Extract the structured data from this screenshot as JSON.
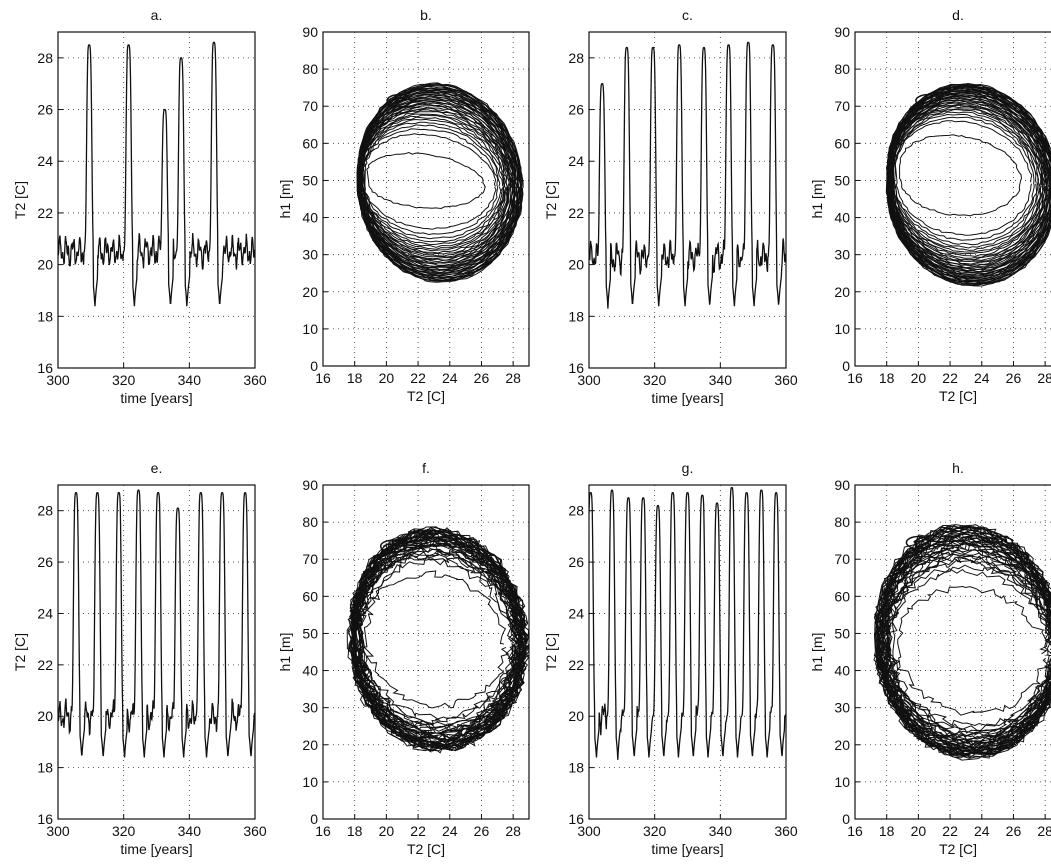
{
  "chart_data": [
    {
      "id": "a",
      "type": "line",
      "title": "a.",
      "xlabel": "time [years]",
      "ylabel": "T2 [C]",
      "xlim": [
        300,
        360
      ],
      "ylim": [
        16,
        29
      ],
      "xticks": [
        300,
        320,
        340,
        360
      ],
      "yticks": [
        16,
        18,
        20,
        22,
        24,
        26,
        28
      ],
      "grid": "dotted",
      "series": [
        {
          "color": "#111111",
          "peaks": [
            [
              309.5,
              28.5
            ],
            [
              321.5,
              28.5
            ],
            [
              332.5,
              26.0
            ],
            [
              337.5,
              28.0
            ],
            [
              347.5,
              28.6
            ]
          ],
          "baseline": 20.5
        }
      ]
    },
    {
      "id": "b",
      "type": "line",
      "title": "b.",
      "xlabel": "T2 [C]",
      "ylabel": "h1 [m]",
      "xlim": [
        16,
        29
      ],
      "ylim": [
        0,
        90
      ],
      "xticks": [
        16,
        18,
        20,
        22,
        24,
        26,
        28
      ],
      "yticks": [
        0,
        10,
        20,
        30,
        40,
        50,
        60,
        70,
        80,
        90
      ],
      "grid": "dotted",
      "series": [
        {
          "color": "#111111",
          "outer_loop": {
            "t2_min": 18.2,
            "t2_max": 28.6,
            "h1_min": 22,
            "h1_max": 74
          },
          "inner_loop": {
            "t2_min": 18.8,
            "t2_max": 26.2,
            "h1_min": 42,
            "h1_max": 55
          }
        }
      ]
    },
    {
      "id": "c",
      "type": "line",
      "title": "c.",
      "xlabel": "time [years]",
      "ylabel": "T2 [C]",
      "xlim": [
        300,
        360
      ],
      "ylim": [
        16,
        29
      ],
      "xticks": [
        300,
        320,
        340,
        360
      ],
      "yticks": [
        16,
        18,
        20,
        22,
        24,
        26,
        28
      ],
      "grid": "dotted",
      "series": [
        {
          "color": "#111111",
          "peaks": [
            [
              304.0,
              27.0
            ],
            [
              311.5,
              28.4
            ],
            [
              319.5,
              28.4
            ],
            [
              327.5,
              28.5
            ],
            [
              335.0,
              28.4
            ],
            [
              342.5,
              28.5
            ],
            [
              348.5,
              28.6
            ],
            [
              356.0,
              28.5
            ]
          ],
          "baseline": 20.3
        }
      ]
    },
    {
      "id": "d",
      "type": "line",
      "title": "d.",
      "xlabel": "T2 [C]",
      "ylabel": "h1 [m]",
      "xlim": [
        16,
        29
      ],
      "ylim": [
        0,
        90
      ],
      "xticks": [
        16,
        18,
        20,
        22,
        24,
        26,
        28
      ],
      "yticks": [
        0,
        10,
        20,
        30,
        40,
        50,
        60,
        70,
        80,
        90
      ],
      "grid": "dotted",
      "series": [
        {
          "color": "#111111",
          "outer_loop": {
            "t2_min": 18.0,
            "t2_max": 28.8,
            "h1_min": 21,
            "h1_max": 74
          },
          "inner_loop": {
            "t2_min": 18.8,
            "t2_max": 26.5,
            "h1_min": 40,
            "h1_max": 60
          }
        }
      ]
    },
    {
      "id": "e",
      "type": "line",
      "title": "e.",
      "xlabel": "time [years]",
      "ylabel": "T2 [C]",
      "xlim": [
        300,
        360
      ],
      "ylim": [
        16,
        29
      ],
      "xticks": [
        300,
        320,
        340,
        360
      ],
      "yticks": [
        16,
        18,
        20,
        22,
        24,
        26,
        28
      ],
      "grid": "dotted",
      "series": [
        {
          "color": "#111111",
          "peaks": [
            [
              305.5,
              28.7
            ],
            [
              312.0,
              28.7
            ],
            [
              318.5,
              28.7
            ],
            [
              324.5,
              28.8
            ],
            [
              330.5,
              28.7
            ],
            [
              336.5,
              28.1
            ],
            [
              343.5,
              28.7
            ],
            [
              350.0,
              28.7
            ],
            [
              357.0,
              28.7
            ]
          ],
          "baseline": 20.0
        }
      ]
    },
    {
      "id": "f",
      "type": "line",
      "title": "f.",
      "xlabel": "T2 [C]",
      "ylabel": "h1 [m]",
      "xlim": [
        16,
        29
      ],
      "ylim": [
        0,
        90
      ],
      "xticks": [
        16,
        18,
        20,
        22,
        24,
        26,
        28
      ],
      "yticks": [
        0,
        10,
        20,
        30,
        40,
        50,
        60,
        70,
        80,
        90
      ],
      "grid": "dotted",
      "series": [
        {
          "color": "#111111",
          "outer_loop": {
            "t2_min": 17.8,
            "t2_max": 28.8,
            "h1_min": 18,
            "h1_max": 76
          },
          "inner_loop": {
            "t2_min": 18.8,
            "t2_max": 27.5,
            "h1_min": 30,
            "h1_max": 64
          }
        }
      ]
    },
    {
      "id": "g",
      "type": "line",
      "title": "g.",
      "xlabel": "time [years]",
      "ylabel": "T2 [C]",
      "xlim": [
        300,
        360
      ],
      "ylim": [
        16,
        29
      ],
      "xticks": [
        300,
        320,
        340,
        360
      ],
      "yticks": [
        16,
        18,
        20,
        22,
        24,
        26,
        28
      ],
      "grid": "dotted",
      "series": [
        {
          "color": "#111111",
          "peaks": [
            [
              300.5,
              28.7
            ],
            [
              307.0,
              28.8
            ],
            [
              312.0,
              28.5
            ],
            [
              316.5,
              28.5
            ],
            [
              321.0,
              28.2
            ],
            [
              325.5,
              28.7
            ],
            [
              330.0,
              28.7
            ],
            [
              334.5,
              28.6
            ],
            [
              339.0,
              28.3
            ],
            [
              343.5,
              28.9
            ],
            [
              348.0,
              28.7
            ],
            [
              352.5,
              28.8
            ],
            [
              357.0,
              28.7
            ]
          ],
          "baseline": 20.0
        }
      ]
    },
    {
      "id": "h",
      "type": "line",
      "title": "h.",
      "xlabel": "T2 [C]",
      "ylabel": "h1 [m]",
      "xlim": [
        16,
        29
      ],
      "ylim": [
        0,
        90
      ],
      "xticks": [
        16,
        18,
        20,
        22,
        24,
        26,
        28
      ],
      "yticks": [
        0,
        10,
        20,
        30,
        40,
        50,
        60,
        70,
        80,
        90
      ],
      "grid": "dotted",
      "series": [
        {
          "color": "#111111",
          "outer_loop": {
            "t2_min": 17.4,
            "t2_max": 29.0,
            "h1_min": 16,
            "h1_max": 77
          },
          "inner_loop": {
            "t2_min": 18.8,
            "t2_max": 28.0,
            "h1_min": 28,
            "h1_max": 60
          }
        }
      ]
    }
  ]
}
